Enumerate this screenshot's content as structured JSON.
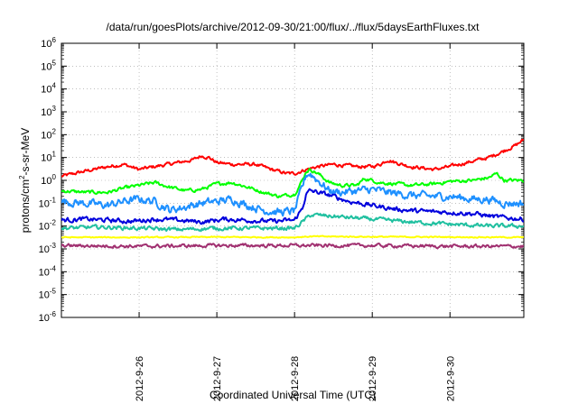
{
  "chart_data": {
    "type": "line",
    "title": "/data/run/goesPlots/archive/2012-09-30/21:00/flux/../flux/5daysEarthFluxes.txt",
    "xlabel": "Coordinated Universal Time (UTC)",
    "ylabel": {
      "base": "protons/cm",
      "sup": "2",
      "rest": "-s-sr-MeV"
    },
    "yscale": "log",
    "ylim_exp": [
      -6,
      6
    ],
    "y_ticks": [
      {
        "base": "10",
        "exp": "-6"
      },
      {
        "base": "10",
        "exp": "-5"
      },
      {
        "base": "10",
        "exp": "-4"
      },
      {
        "base": "10",
        "exp": "-3"
      },
      {
        "base": "10",
        "exp": "-2"
      },
      {
        "base": "10",
        "exp": "-1"
      },
      {
        "base": "10",
        "exp": "0"
      },
      {
        "base": "10",
        "exp": "1"
      },
      {
        "base": "10",
        "exp": "2"
      },
      {
        "base": "10",
        "exp": "3"
      },
      {
        "base": "10",
        "exp": "4"
      },
      {
        "base": "10",
        "exp": "5"
      },
      {
        "base": "10",
        "exp": "6"
      }
    ],
    "xlim": [
      0.0,
      5.95
    ],
    "x_ticks": [
      {
        "label": "2012-9-26",
        "x": 1.0
      },
      {
        "label": "2012-9-27",
        "x": 2.0
      },
      {
        "label": "2012-9-28",
        "x": 3.0
      },
      {
        "label": "2012-9-29",
        "x": 4.0
      },
      {
        "label": "2012-9-30",
        "x": 5.0
      }
    ],
    "grid": true,
    "series": [
      {
        "color": "#ff0000",
        "noise": 0.06,
        "points": [
          [
            0,
            1.5
          ],
          [
            0.3,
            2.5
          ],
          [
            0.6,
            4
          ],
          [
            0.8,
            5
          ],
          [
            1.0,
            3
          ],
          [
            1.2,
            4
          ],
          [
            1.5,
            6
          ],
          [
            1.7,
            8
          ],
          [
            1.8,
            12
          ],
          [
            1.9,
            10
          ],
          [
            2.0,
            6
          ],
          [
            2.2,
            5
          ],
          [
            2.5,
            5
          ],
          [
            2.7,
            3
          ],
          [
            2.9,
            2
          ],
          [
            3.0,
            2
          ],
          [
            3.15,
            3
          ],
          [
            3.3,
            4
          ],
          [
            3.5,
            5
          ],
          [
            3.8,
            4
          ],
          [
            4.0,
            4
          ],
          [
            4.1,
            5
          ],
          [
            4.2,
            8
          ],
          [
            4.3,
            6
          ],
          [
            4.5,
            4
          ],
          [
            4.8,
            3
          ],
          [
            5.0,
            4
          ],
          [
            5.3,
            7
          ],
          [
            5.5,
            10
          ],
          [
            5.7,
            20
          ],
          [
            5.85,
            35
          ],
          [
            5.95,
            60
          ]
        ]
      },
      {
        "color": "#00ff00",
        "noise": 0.06,
        "points": [
          [
            0,
            0.35
          ],
          [
            0.3,
            0.3
          ],
          [
            0.6,
            0.3
          ],
          [
            0.8,
            0.45
          ],
          [
            1.0,
            0.6
          ],
          [
            1.2,
            0.8
          ],
          [
            1.4,
            0.5
          ],
          [
            1.6,
            0.35
          ],
          [
            1.8,
            0.4
          ],
          [
            2.0,
            0.7
          ],
          [
            2.2,
            0.8
          ],
          [
            2.4,
            0.5
          ],
          [
            2.6,
            0.3
          ],
          [
            2.8,
            0.2
          ],
          [
            3.0,
            0.25
          ],
          [
            3.1,
            1.0
          ],
          [
            3.15,
            2.5
          ],
          [
            3.2,
            3
          ],
          [
            3.3,
            2
          ],
          [
            3.45,
            0.8
          ],
          [
            3.6,
            0.6
          ],
          [
            3.8,
            0.6
          ],
          [
            3.9,
            1.2
          ],
          [
            4.0,
            1.0
          ],
          [
            4.1,
            0.8
          ],
          [
            4.3,
            0.7
          ],
          [
            4.5,
            0.6
          ],
          [
            4.8,
            0.7
          ],
          [
            5.0,
            0.9
          ],
          [
            5.3,
            1.0
          ],
          [
            5.5,
            1.3
          ],
          [
            5.6,
            2.0
          ],
          [
            5.7,
            1.0
          ],
          [
            5.95,
            1.0
          ]
        ]
      },
      {
        "color": "#1e90ff",
        "noise": 0.14,
        "points": [
          [
            0,
            0.12
          ],
          [
            0.3,
            0.1
          ],
          [
            0.6,
            0.08
          ],
          [
            0.8,
            0.12
          ],
          [
            1.0,
            0.15
          ],
          [
            1.2,
            0.12
          ],
          [
            1.4,
            0.05
          ],
          [
            1.6,
            0.07
          ],
          [
            1.8,
            0.1
          ],
          [
            2.0,
            0.12
          ],
          [
            2.2,
            0.15
          ],
          [
            2.4,
            0.08
          ],
          [
            2.6,
            0.05
          ],
          [
            2.8,
            0.04
          ],
          [
            3.0,
            0.045
          ],
          [
            3.1,
            0.5
          ],
          [
            3.15,
            1.8
          ],
          [
            3.2,
            2.0
          ],
          [
            3.3,
            1.0
          ],
          [
            3.45,
            0.35
          ],
          [
            3.6,
            0.3
          ],
          [
            3.8,
            0.35
          ],
          [
            4.0,
            0.4
          ],
          [
            4.2,
            0.3
          ],
          [
            4.5,
            0.22
          ],
          [
            4.8,
            0.2
          ],
          [
            5.0,
            0.2
          ],
          [
            5.3,
            0.15
          ],
          [
            5.5,
            0.15
          ],
          [
            5.7,
            0.1
          ],
          [
            5.95,
            0.1
          ]
        ]
      },
      {
        "color": "#0000dd",
        "noise": 0.08,
        "points": [
          [
            0,
            0.018
          ],
          [
            0.3,
            0.02
          ],
          [
            0.6,
            0.018
          ],
          [
            0.9,
            0.016
          ],
          [
            1.2,
            0.02
          ],
          [
            1.5,
            0.018
          ],
          [
            1.8,
            0.015
          ],
          [
            2.1,
            0.02
          ],
          [
            2.4,
            0.018
          ],
          [
            2.7,
            0.016
          ],
          [
            3.0,
            0.018
          ],
          [
            3.1,
            0.06
          ],
          [
            3.15,
            0.25
          ],
          [
            3.2,
            0.35
          ],
          [
            3.3,
            0.3
          ],
          [
            3.5,
            0.2
          ],
          [
            3.7,
            0.12
          ],
          [
            4.0,
            0.08
          ],
          [
            4.3,
            0.055
          ],
          [
            4.6,
            0.045
          ],
          [
            5.0,
            0.04
          ],
          [
            5.3,
            0.035
          ],
          [
            5.6,
            0.025
          ],
          [
            5.95,
            0.02
          ]
        ]
      },
      {
        "color": "#20c0a0",
        "noise": 0.07,
        "points": [
          [
            0,
            0.008
          ],
          [
            0.5,
            0.009
          ],
          [
            1.0,
            0.008
          ],
          [
            1.5,
            0.007
          ],
          [
            2.0,
            0.008
          ],
          [
            2.5,
            0.008
          ],
          [
            3.0,
            0.008
          ],
          [
            3.1,
            0.015
          ],
          [
            3.2,
            0.03
          ],
          [
            3.3,
            0.03
          ],
          [
            3.6,
            0.025
          ],
          [
            4.0,
            0.02
          ],
          [
            4.5,
            0.015
          ],
          [
            5.0,
            0.012
          ],
          [
            5.5,
            0.01
          ],
          [
            5.95,
            0.01
          ]
        ]
      },
      {
        "color": "#ffff00",
        "noise": 0.02,
        "points": [
          [
            0,
            0.0032
          ],
          [
            1.0,
            0.0032
          ],
          [
            2.0,
            0.0033
          ],
          [
            3.0,
            0.0032
          ],
          [
            3.2,
            0.0035
          ],
          [
            4.0,
            0.0034
          ],
          [
            5.0,
            0.0033
          ],
          [
            5.95,
            0.0032
          ]
        ]
      },
      {
        "color": "#a03070",
        "noise": 0.06,
        "points": [
          [
            0,
            0.0014
          ],
          [
            1.0,
            0.0013
          ],
          [
            2.0,
            0.0014
          ],
          [
            3.0,
            0.0014
          ],
          [
            4.0,
            0.0014
          ],
          [
            5.0,
            0.0013
          ],
          [
            5.95,
            0.0013
          ]
        ]
      }
    ]
  }
}
